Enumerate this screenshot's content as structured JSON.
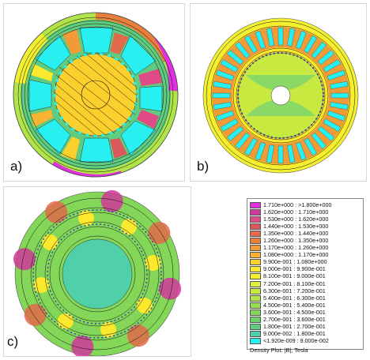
{
  "panels": [
    {
      "label": "a)"
    },
    {
      "label": "b)"
    },
    {
      "label": "c)"
    }
  ],
  "legend": {
    "title": "Density Plot: |B|, Tesla",
    "entries": [
      {
        "text": "1.710e+000 : >1.800e+000",
        "color": "#e030e0"
      },
      {
        "text": "1.620e+000 : 1.710e+000",
        "color": "#d0389a"
      },
      {
        "text": "1.530e+000 : 1.620e+000",
        "color": "#e04a86"
      },
      {
        "text": "1.440e+000 : 1.530e+000",
        "color": "#d8585c"
      },
      {
        "text": "1.350e+000 : 1.440e+000",
        "color": "#e06a4a"
      },
      {
        "text": "1.260e+000 : 1.350e+000",
        "color": "#e8803c"
      },
      {
        "text": "1.170e+000 : 1.260e+000",
        "color": "#f09a38"
      },
      {
        "text": "1.080e+000 : 1.170e+000",
        "color": "#f8b430"
      },
      {
        "text": "9.900e-001 : 1.080e+000",
        "color": "#fcd02c"
      },
      {
        "text": "9.000e-001 : 9.900e-001",
        "color": "#fce82c"
      },
      {
        "text": "8.100e-001 : 9.000e-001",
        "color": "#f4f030"
      },
      {
        "text": "7.200e-001 : 8.100e-001",
        "color": "#e0f040"
      },
      {
        "text": "6.300e-001 : 7.200e-001",
        "color": "#c8ea40"
      },
      {
        "text": "5.400e-001 : 6.300e-001",
        "color": "#b0e448"
      },
      {
        "text": "4.500e-001 : 5.400e-001",
        "color": "#98dc50"
      },
      {
        "text": "3.600e-001 : 4.500e-001",
        "color": "#84d658"
      },
      {
        "text": "2.700e-001 : 3.600e-001",
        "color": "#70d068"
      },
      {
        "text": "1.800e-001 : 2.700e-001",
        "color": "#60cc80"
      },
      {
        "text": "9.000e-002 : 1.800e-001",
        "color": "#50d0a8"
      },
      {
        "text": "<1.920e-009 : 9.000e-002",
        "color": "#28f0f0"
      }
    ]
  }
}
